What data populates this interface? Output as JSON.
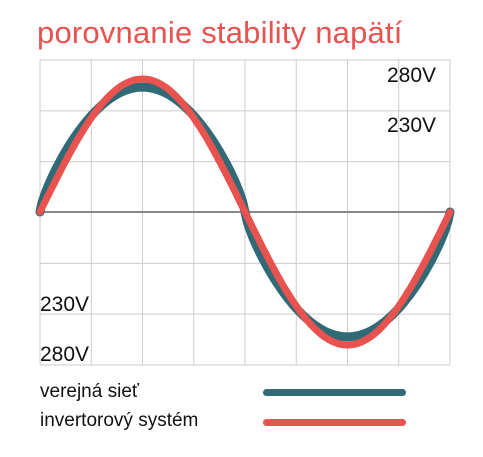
{
  "title": "porovnanie stability napätí",
  "colors": {
    "title": "#e8524f",
    "grid": "#cccccc",
    "axis": "#888888",
    "public_grid": "#2f6a76",
    "inverter": "#e8524f"
  },
  "chart_data": {
    "type": "line",
    "title": "porovnanie stability napätí",
    "xlabel": "",
    "ylabel": "",
    "grid": true,
    "legend_position": "bottom",
    "ylim": [
      -280,
      280
    ],
    "y_tick_labels": [
      {
        "value": 280,
        "label": "280V"
      },
      {
        "value": 230,
        "label": "230V"
      },
      {
        "value": -230,
        "label": "230V"
      },
      {
        "value": -280,
        "label": "280V"
      }
    ],
    "x_periods": [
      0,
      1
    ],
    "series": [
      {
        "name": "verejná sieť",
        "shape": "clipped-sine",
        "peak": 230,
        "color": "#2f6a76"
      },
      {
        "name": "invertorový systém",
        "shape": "sine",
        "peak": 245,
        "color": "#e8524f"
      }
    ]
  }
}
